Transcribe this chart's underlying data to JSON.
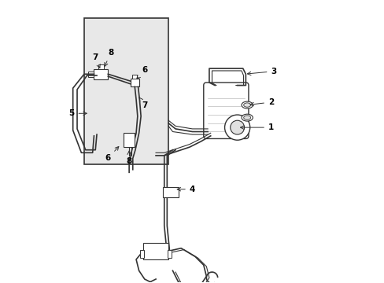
{
  "bg_color": "#ffffff",
  "line_color": "#333333",
  "inset_bg": "#e8e8e8",
  "inset_border": "#333333",
  "label_color": "#000000",
  "fig_width": 4.89,
  "fig_height": 3.6,
  "dpi": 100
}
